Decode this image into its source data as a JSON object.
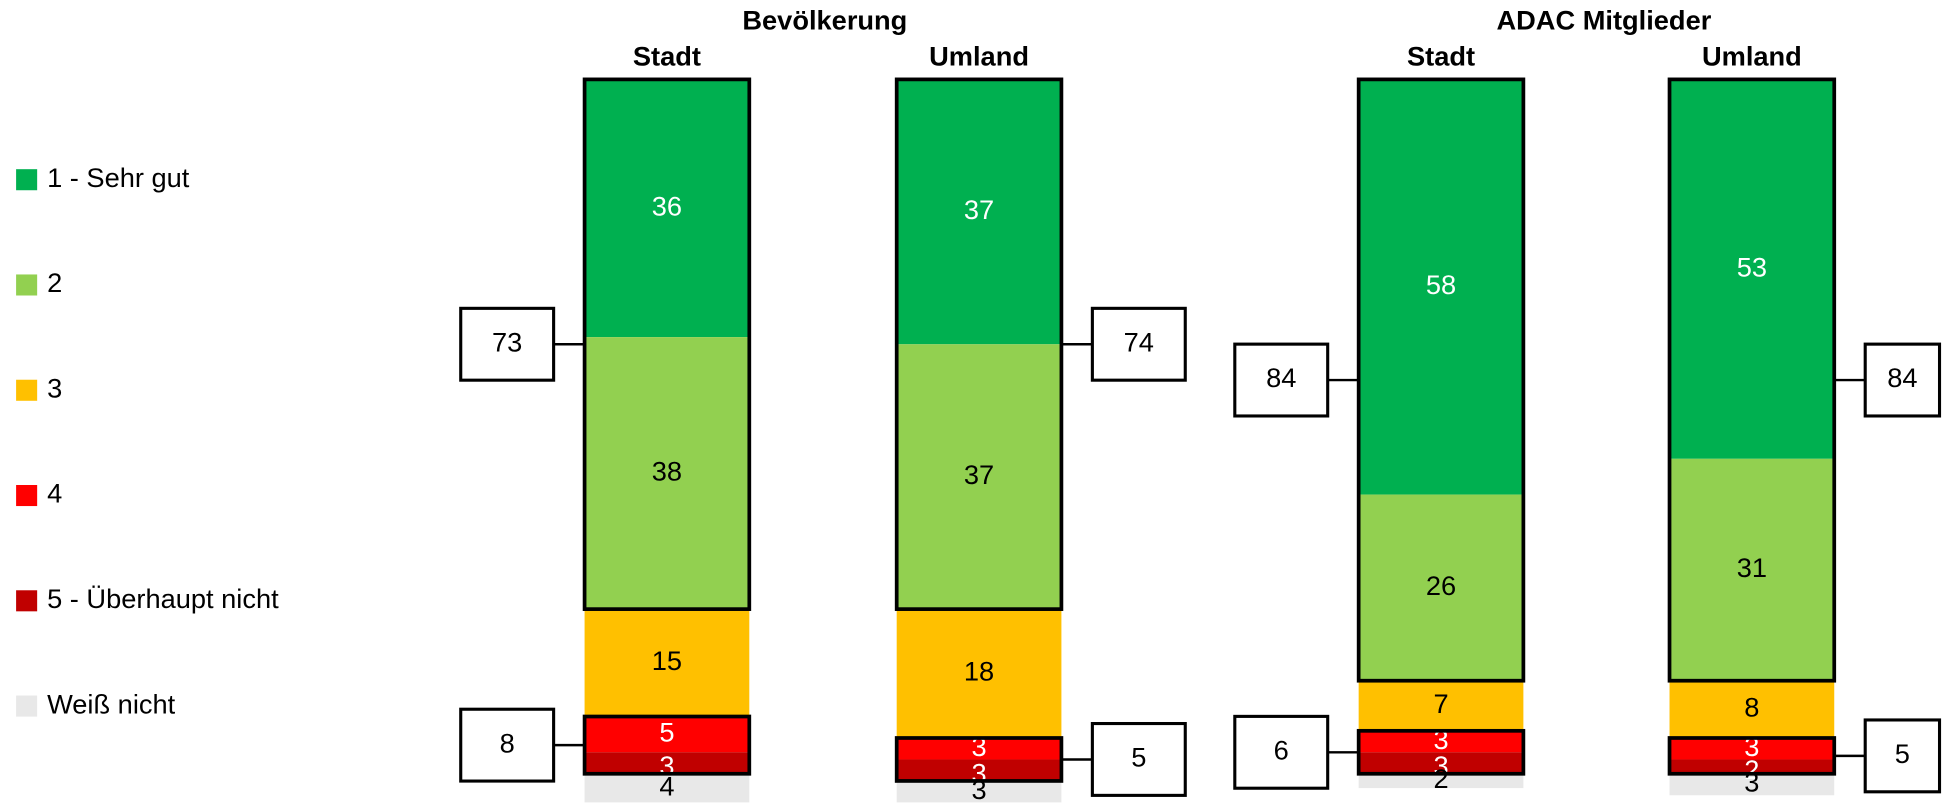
{
  "chart_data": {
    "type": "stacked_bar",
    "groups": [
      "Bevölkerung",
      "ADAC Mitglieder"
    ],
    "categories": [
      "Stadt",
      "Umland",
      "Stadt",
      "Umland"
    ],
    "series": [
      {
        "name": "1 - Sehr gut",
        "color": "#00b050",
        "values": [
          36,
          37,
          58,
          53
        ]
      },
      {
        "name": "2",
        "color": "#92d050",
        "values": [
          38,
          37,
          26,
          31
        ]
      },
      {
        "name": "3",
        "color": "#ffc000",
        "values": [
          15,
          18,
          7,
          8
        ]
      },
      {
        "name": "4",
        "color": "#ff0000",
        "values": [
          5,
          3,
          3,
          3
        ]
      },
      {
        "name": "5 - Überhaupt nicht",
        "color": "#c00000",
        "values": [
          3,
          3,
          3,
          2
        ]
      },
      {
        "name": "Weiß nicht",
        "color": "#e8e8e8",
        "values": [
          4,
          3,
          2,
          3
        ]
      }
    ],
    "top_two": [
      73,
      74,
      84,
      84
    ],
    "bottom_two": [
      8,
      5,
      6,
      5
    ]
  }
}
